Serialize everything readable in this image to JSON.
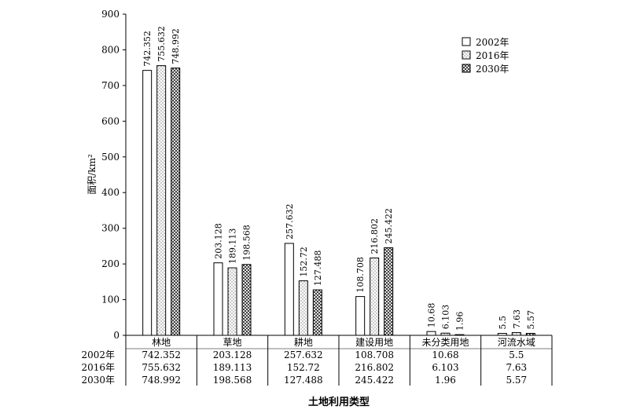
{
  "chart_data": {
    "type": "bar",
    "ylabel": "面积/km²",
    "xlabel": "土地利用类型",
    "ylim": [
      0,
      900
    ],
    "yticks": [
      0,
      100,
      200,
      300,
      400,
      500,
      600,
      700,
      800,
      900
    ],
    "categories": [
      "林地",
      "草地",
      "耕地",
      "建设用地",
      "未分类用地",
      "河流水域"
    ],
    "series": [
      {
        "name": "2002年",
        "pattern": "plain",
        "values": [
          742.352,
          203.128,
          257.632,
          108.708,
          10.68,
          5.5
        ],
        "labels": [
          "742.352",
          "203.128",
          "257.632",
          "108.708",
          "10.68",
          "5.5"
        ]
      },
      {
        "name": "2016年",
        "pattern": "dotted",
        "values": [
          755.632,
          189.113,
          152.72,
          216.802,
          6.103,
          7.63
        ],
        "labels": [
          "755.632",
          "189.113",
          "152.72",
          "216.802",
          "6.103",
          "7.63"
        ]
      },
      {
        "name": "2030年",
        "pattern": "crosshatch",
        "values": [
          748.992,
          198.568,
          127.488,
          245.422,
          1.96,
          5.57
        ],
        "labels": [
          "748.992",
          "198.568",
          "127.488",
          "245.422",
          "1.96",
          "5.57"
        ]
      }
    ],
    "legend_position": "top-right",
    "data_table": true
  }
}
